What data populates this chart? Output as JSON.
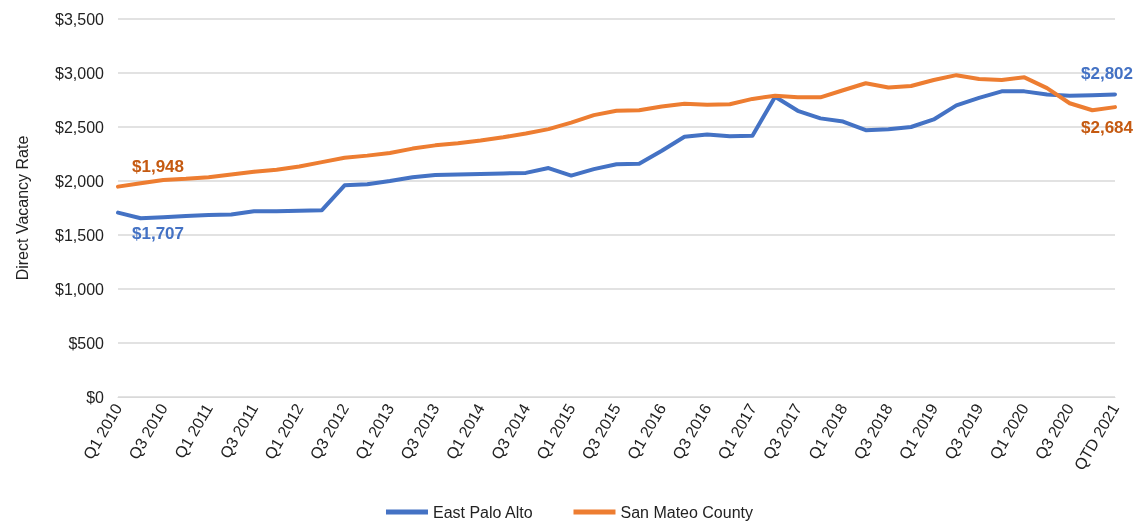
{
  "chart_data": {
    "type": "line",
    "ylabel": "Direct Vacancy Rate",
    "categories": [
      "Q1 2010",
      null,
      "Q3 2010",
      null,
      "Q1 2011",
      null,
      "Q3 2011",
      null,
      "Q1 2012",
      null,
      "Q3 2012",
      null,
      "Q1 2013",
      null,
      "Q3 2013",
      null,
      "Q1 2014",
      null,
      "Q3 2014",
      null,
      "Q1 2015",
      null,
      "Q3 2015",
      null,
      "Q1 2016",
      null,
      "Q3 2016",
      null,
      "Q1 2017",
      null,
      "Q3 2017",
      null,
      "Q1 2018",
      null,
      "Q3 2018",
      null,
      "Q1 2019",
      null,
      "Q3 2019",
      null,
      "Q1 2020",
      null,
      "Q3 2020",
      null,
      "QTD 2021"
    ],
    "series": [
      {
        "name": "East Palo Alto",
        "color": "#4472c4",
        "values": [
          1707,
          1655,
          1665,
          1675,
          1685,
          1690,
          1720,
          1720,
          1725,
          1730,
          1960,
          1970,
          2000,
          2035,
          2055,
          2060,
          2065,
          2070,
          2075,
          2120,
          2050,
          2110,
          2155,
          2160,
          2280,
          2410,
          2430,
          2415,
          2420,
          2780,
          2650,
          2580,
          2550,
          2470,
          2480,
          2500,
          2570,
          2700,
          2770,
          2830,
          2830,
          2800,
          2790,
          2795,
          2802
        ],
        "value_labels": [
          "$1,707",
          null,
          null,
          null,
          null,
          null,
          null,
          null,
          null,
          null,
          null,
          null,
          null,
          null,
          null,
          null,
          null,
          null,
          null,
          null,
          null,
          null,
          null,
          null,
          null,
          null,
          null,
          null,
          null,
          null,
          null,
          null,
          null,
          null,
          null,
          null,
          null,
          null,
          null,
          null,
          null,
          null,
          null,
          null,
          "$2,802"
        ]
      },
      {
        "name": "San Mateo County",
        "color": "#ed7d31",
        "values": [
          1948,
          1980,
          2010,
          2020,
          2035,
          2060,
          2085,
          2105,
          2135,
          2175,
          2215,
          2235,
          2260,
          2300,
          2330,
          2350,
          2375,
          2405,
          2440,
          2480,
          2540,
          2610,
          2650,
          2655,
          2690,
          2715,
          2705,
          2710,
          2760,
          2790,
          2775,
          2775,
          2840,
          2905,
          2865,
          2880,
          2935,
          2980,
          2945,
          2935,
          2960,
          2860,
          2720,
          2655,
          2684
        ],
        "value_labels": [
          "$1,948",
          null,
          null,
          null,
          null,
          null,
          null,
          null,
          null,
          null,
          null,
          null,
          null,
          null,
          null,
          null,
          null,
          null,
          null,
          null,
          null,
          null,
          null,
          null,
          null,
          null,
          null,
          null,
          null,
          null,
          null,
          null,
          null,
          null,
          null,
          null,
          null,
          null,
          null,
          null,
          null,
          null,
          null,
          null,
          "$2,684"
        ]
      }
    ],
    "ylim": [
      0,
      3500
    ],
    "yticks": [
      {
        "value": 0,
        "label": "$0"
      },
      {
        "value": 500,
        "label": "$500"
      },
      {
        "value": 1000,
        "label": "$1,000"
      },
      {
        "value": 1500,
        "label": "$1,500"
      },
      {
        "value": 2000,
        "label": "$2,000"
      },
      {
        "value": 2500,
        "label": "$2,500"
      },
      {
        "value": 3000,
        "label": "$3,000"
      },
      {
        "value": 3500,
        "label": "$3,500"
      }
    ],
    "grid": "y",
    "legend": "bottom",
    "marker": "none",
    "line_style": "solid"
  }
}
